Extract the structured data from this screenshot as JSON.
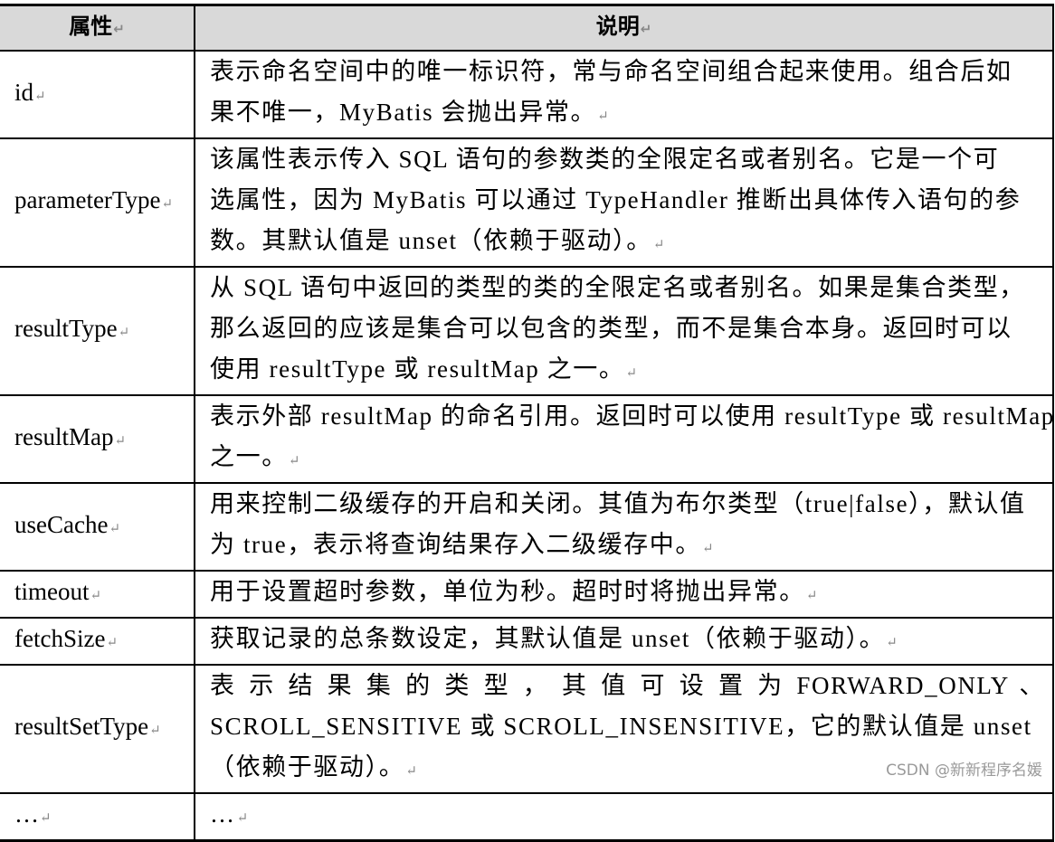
{
  "header": {
    "attribute": "属性",
    "description": "说明"
  },
  "rows": [
    {
      "attribute": "id",
      "lines": [
        "表示命名空间中的唯一标识符，常与命名空间组合起来使用。组合后如",
        "果不唯一，MyBatis 会抛出异常。"
      ]
    },
    {
      "attribute": "parameterType",
      "lines": [
        "该属性表示传入 SQL 语句的参数类的全限定名或者别名。它是一个可",
        "选属性，因为 MyBatis 可以通过 TypeHandler 推断出具体传入语句的参",
        "数。其默认值是 unset（依赖于驱动）。"
      ]
    },
    {
      "attribute": "resultType",
      "lines": [
        "从 SQL 语句中返回的类型的类的全限定名或者别名。如果是集合类型，",
        "那么返回的应该是集合可以包含的类型，而不是集合本身。返回时可以",
        "使用 resultType 或 resultMap 之一。"
      ]
    },
    {
      "attribute": "resultMap",
      "lines": [
        "表示外部 resultMap 的命名引用。返回时可以使用 resultType 或 resultMap",
        "之一。"
      ]
    },
    {
      "attribute": "useCache",
      "lines": [
        "用来控制二级缓存的开启和关闭。其值为布尔类型（true|false），默认值",
        "为 true，表示将查询结果存入二级缓存中。"
      ]
    },
    {
      "attribute": "timeout",
      "lines": [
        "用于设置超时参数，单位为秒。超时时将抛出异常。"
      ]
    },
    {
      "attribute": "fetchSize",
      "lines": [
        "获取记录的总条数设定，其默认值是 unset（依赖于驱动）。"
      ]
    },
    {
      "attribute": "resultSetType",
      "lines": [
        "表 示 结 果 集 的 类 型 ， 其 值 可 设 置 为 FORWARD_ONLY 、",
        "SCROLL_SENSITIVE 或 SCROLL_INSENSITIVE，它的默认值是 unset",
        "（依赖于驱动）。"
      ]
    },
    {
      "attribute": "…",
      "lines": [
        "…"
      ]
    }
  ],
  "watermark": "CSDN @新新程序名媛"
}
